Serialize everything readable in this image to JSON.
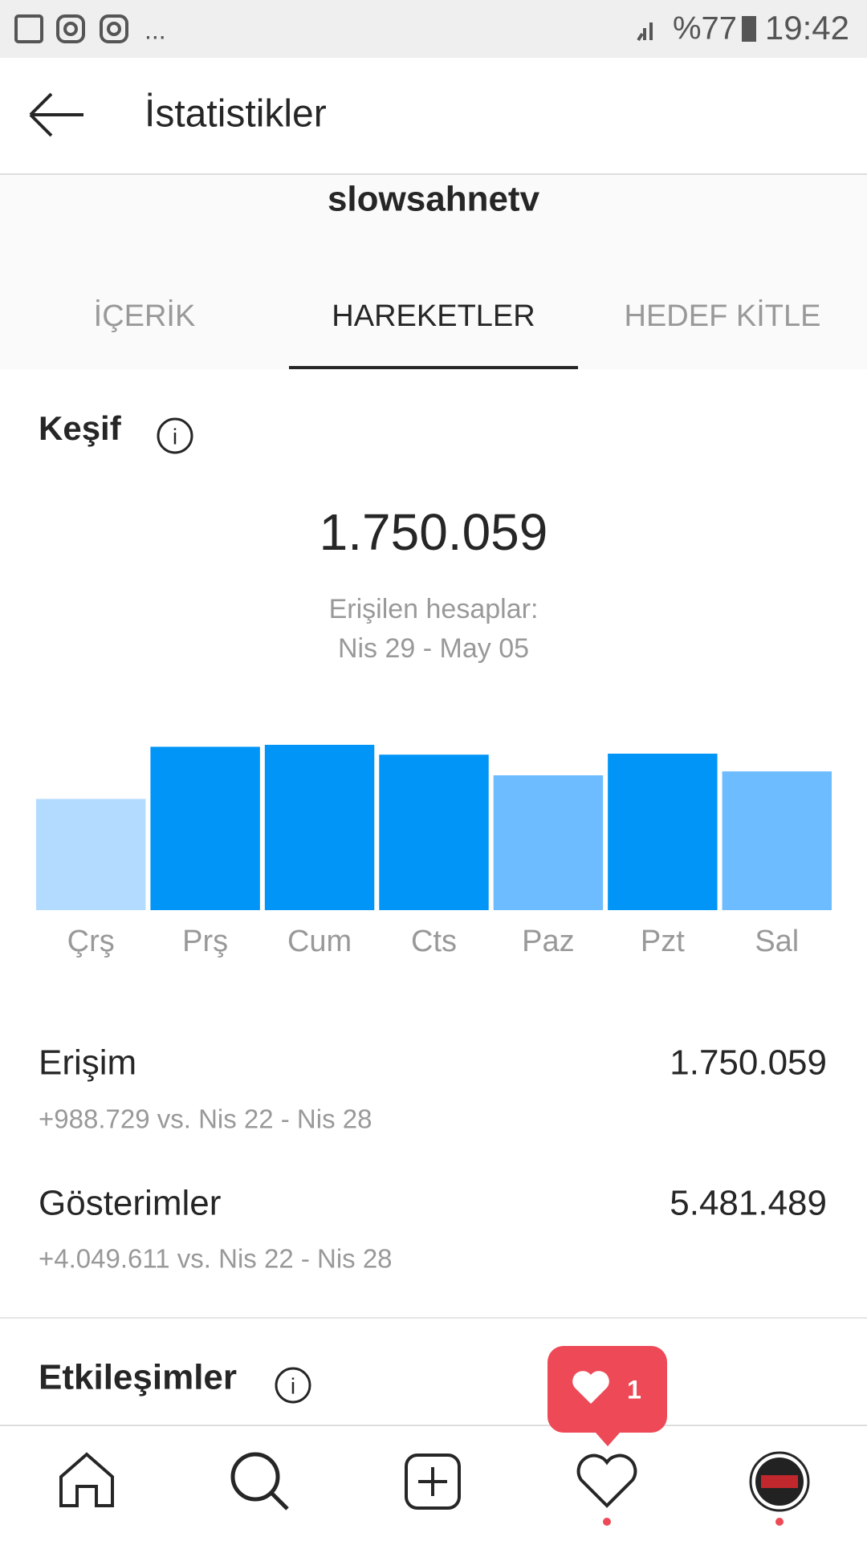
{
  "status_bar": {
    "battery": "%77",
    "time": "19:42"
  },
  "header": {
    "title": "İstatistikler"
  },
  "account": {
    "username": "slowsahnetv"
  },
  "tabs": [
    "İÇERİK",
    "HAREKETLER",
    "HEDEF KİTLE"
  ],
  "discovery": {
    "title": "Keşif",
    "total": "1.750.059",
    "caption_line1": "Erişilen hesaplar:",
    "caption_line2": "Nis 29 - May 05",
    "chart_data": {
      "type": "bar",
      "categories": [
        "Çrş",
        "Prş",
        "Cum",
        "Cts",
        "Paz",
        "Pzt",
        "Sal"
      ],
      "values": [
        113,
        166,
        168,
        158,
        137,
        159,
        141
      ],
      "colors": [
        "#b3dbff",
        "#0095f6",
        "#0095f6",
        "#0095f6",
        "#6dbcff",
        "#0095f6",
        "#6dbcff"
      ]
    },
    "rows": [
      {
        "label": "Erişim",
        "value": "1.750.059",
        "comparison": "+988.729 vs. Nis 22 - Nis 28"
      },
      {
        "label": "Gösterimler",
        "value": "5.481.489",
        "comparison": "+4.049.611 vs. Nis 22 - Nis 28"
      }
    ]
  },
  "interactions": {
    "title": "Etkileşimler"
  },
  "notification": {
    "count": "1"
  }
}
